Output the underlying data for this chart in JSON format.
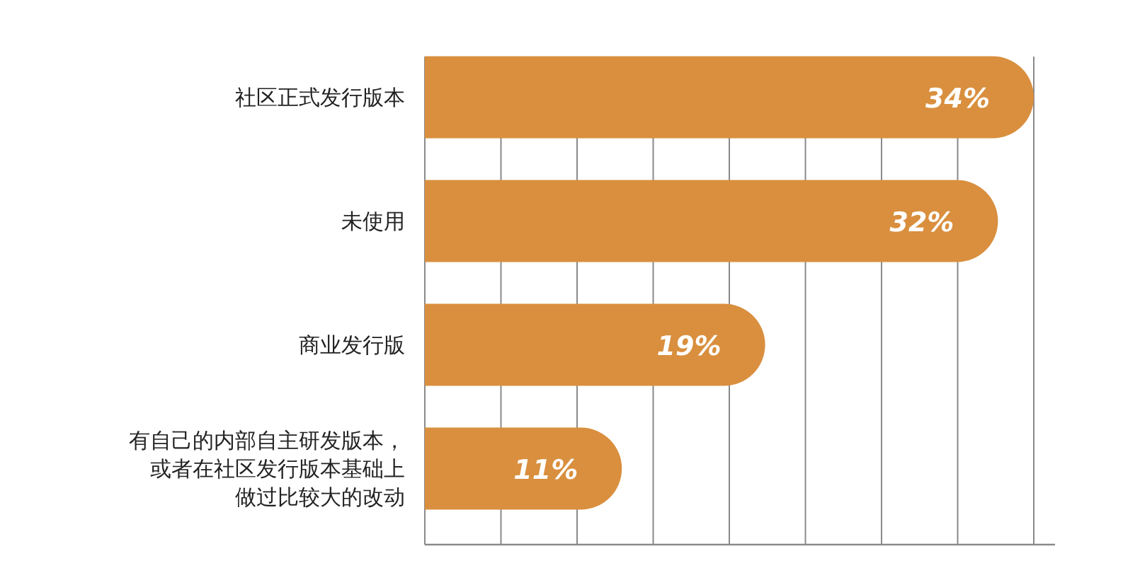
{
  "chart_data": {
    "type": "bar",
    "orientation": "horizontal",
    "categories": [
      "社区正式发行版本",
      "未使用",
      "商业发行版",
      "有自己的内部自主研发版本，或者在社区发行版本基础上做过比较大的改动"
    ],
    "values": [
      34,
      32,
      19,
      11
    ],
    "value_labels": [
      "34%",
      "32%",
      "19%",
      "11%"
    ],
    "color": "#d98f3e",
    "xlim": [
      0,
      34
    ],
    "xticks": [
      {
        "value": 0,
        "label": null
      },
      {
        "value": 4.25,
        "label": null
      },
      {
        "value": 8.5,
        "label": null
      },
      {
        "value": 12.75,
        "label": null
      },
      {
        "value": 17,
        "label": null
      },
      {
        "value": 21.25,
        "label": null
      },
      {
        "value": 25.5,
        "label": null
      },
      {
        "value": 29.75,
        "label": null
      },
      {
        "value": 34,
        "label": null
      }
    ],
    "grid": "x"
  }
}
